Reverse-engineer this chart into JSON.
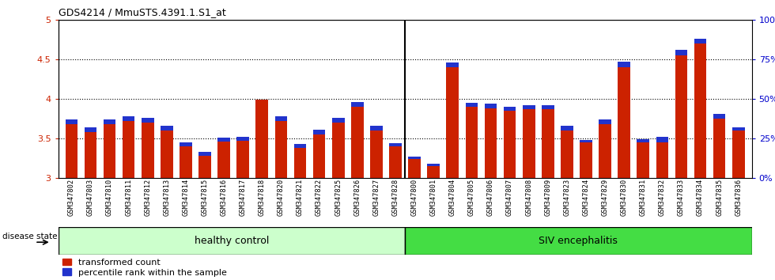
{
  "title": "GDS4214 / MmuSTS.4391.1.S1_at",
  "samples": [
    "GSM347802",
    "GSM347803",
    "GSM347810",
    "GSM347811",
    "GSM347812",
    "GSM347813",
    "GSM347814",
    "GSM347815",
    "GSM347816",
    "GSM347817",
    "GSM347818",
    "GSM347820",
    "GSM347821",
    "GSM347822",
    "GSM347825",
    "GSM347826",
    "GSM347827",
    "GSM347828",
    "GSM347800",
    "GSM347801",
    "GSM347804",
    "GSM347805",
    "GSM347806",
    "GSM347807",
    "GSM347808",
    "GSM347809",
    "GSM347823",
    "GSM347824",
    "GSM347829",
    "GSM347830",
    "GSM347831",
    "GSM347832",
    "GSM347833",
    "GSM347834",
    "GSM347835",
    "GSM347836"
  ],
  "red_values": [
    3.68,
    3.58,
    3.68,
    3.72,
    3.7,
    3.6,
    3.4,
    3.28,
    3.46,
    3.47,
    3.99,
    3.72,
    3.38,
    3.55,
    3.7,
    3.9,
    3.6,
    3.4,
    3.24,
    3.15,
    4.4,
    3.9,
    3.88,
    3.85,
    3.87,
    3.87,
    3.6,
    3.45,
    3.68,
    4.4,
    3.45,
    3.45,
    4.55,
    4.7,
    3.75,
    3.6
  ],
  "blue_heights": [
    0.06,
    0.055,
    0.06,
    0.06,
    0.06,
    0.055,
    0.05,
    0.05,
    0.05,
    0.05,
    0.0,
    0.06,
    0.05,
    0.055,
    0.06,
    0.06,
    0.055,
    0.04,
    0.03,
    0.025,
    0.06,
    0.05,
    0.055,
    0.05,
    0.05,
    0.05,
    0.06,
    0.03,
    0.06,
    0.065,
    0.04,
    0.065,
    0.065,
    0.06,
    0.06,
    0.04
  ],
  "n_healthy": 18,
  "n_siv": 18,
  "healthy_label": "healthy control",
  "siv_label": "SIV encephalitis",
  "disease_state_label": "disease state",
  "ylim_left": [
    3.0,
    5.0
  ],
  "ylim_right": [
    0,
    100
  ],
  "yticks_left": [
    3.0,
    3.5,
    4.0,
    4.5,
    5.0
  ],
  "ytick_labels_left": [
    "3",
    "3.5",
    "4",
    "4.5",
    "5"
  ],
  "yticks_right": [
    0,
    25,
    50,
    75,
    100
  ],
  "ytick_labels_right": [
    "0%",
    "25%",
    "50%",
    "75%",
    "100%"
  ],
  "grid_values": [
    3.5,
    4.0,
    4.5
  ],
  "bar_color_red": "#cc2200",
  "bar_color_blue": "#2233cc",
  "healthy_bg": "#ccffcc",
  "siv_bg": "#44dd44",
  "xlabel_color": "#cc2200",
  "right_axis_color": "#0000cc",
  "title_color": "#000000",
  "bar_width": 0.65,
  "xtick_bg": "#d8d8d8"
}
